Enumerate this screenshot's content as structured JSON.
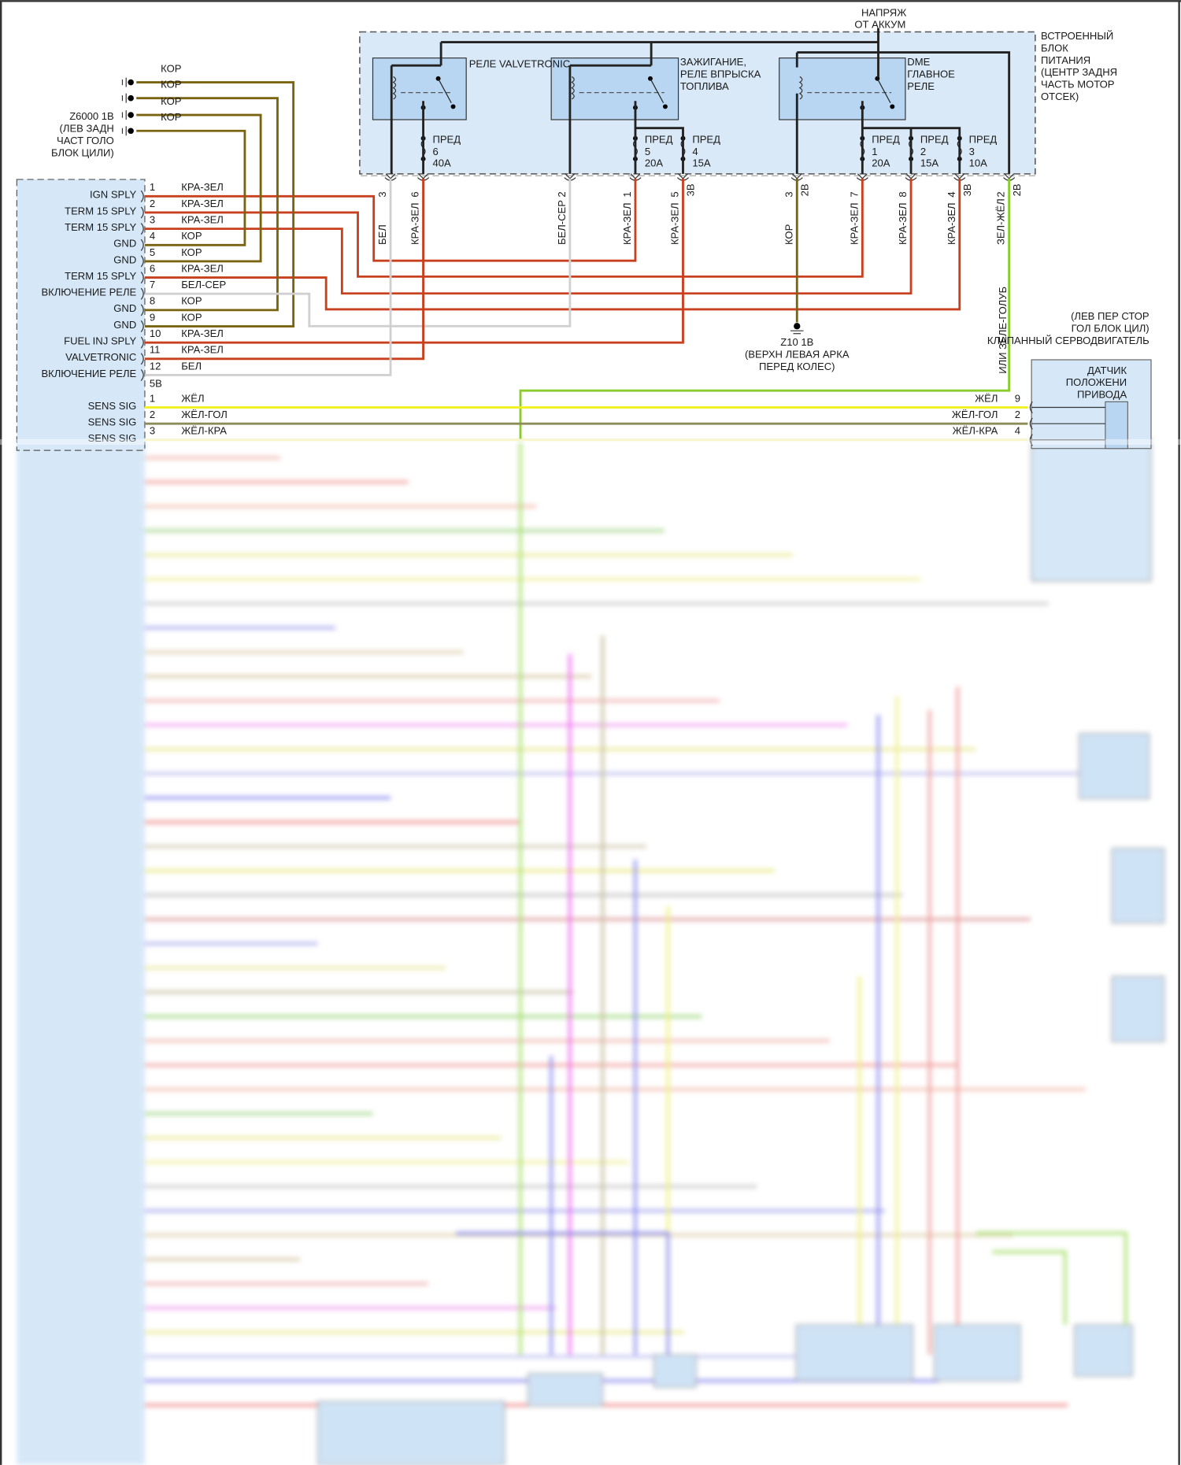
{
  "battery": {
    "line1": "НАПРЯЖ",
    "line2": "ОТ АККУМ"
  },
  "power_block": {
    "lines": [
      "ВСТРОЕННЫЙ",
      "БЛОК",
      "ПИТАНИЯ",
      "(ЦЕНТР ЗАДНЯ",
      "ЧАСТЬ МОТОР",
      "ОТСЕК)"
    ]
  },
  "relays": [
    {
      "lines": [
        "РЕЛЕ VALVETRONIC"
      ]
    },
    {
      "lines": [
        "ЗАЖИГАНИЕ,",
        "РЕЛЕ ВПРЫСКА",
        "ТОПЛИВА"
      ]
    },
    {
      "lines": [
        "DME",
        "ГЛАВНОЕ",
        "РЕЛЕ"
      ]
    }
  ],
  "fuses": [
    {
      "label": "ПРЕД",
      "num": "6",
      "rating": "40A"
    },
    {
      "label": "ПРЕД",
      "num": "5",
      "rating": "20A"
    },
    {
      "label": "ПРЕД",
      "num": "4",
      "rating": "15A"
    },
    {
      "label": "ПРЕД",
      "num": "1",
      "rating": "20A"
    },
    {
      "label": "ПРЕД",
      "num": "2",
      "rating": "15A"
    },
    {
      "label": "ПРЕД",
      "num": "3",
      "rating": "10A"
    }
  ],
  "box_pins": [
    {
      "pin": "3",
      "color": "БЕЛ",
      "conn": ""
    },
    {
      "pin": "6",
      "color": "КРА-ЗЕЛ",
      "conn": ""
    },
    {
      "pin": "2",
      "color": "БЕЛ-СЕР",
      "conn": ""
    },
    {
      "pin": "1",
      "color": "КРА-ЗЕЛ",
      "conn": ""
    },
    {
      "pin": "5",
      "color": "КРА-ЗЕЛ",
      "conn": "3B"
    },
    {
      "pin": "3",
      "color": "КОР",
      "conn": "2B"
    },
    {
      "pin": "7",
      "color": "КРА-ЗЕЛ",
      "conn": ""
    },
    {
      "pin": "8",
      "color": "КРА-ЗЕЛ",
      "conn": ""
    },
    {
      "pin": "4",
      "color": "КРА-ЗЕЛ",
      "conn": "3B"
    },
    {
      "pin": "2",
      "color": "ЗЕЛ-ЖЁЛ",
      "conn": "2B"
    }
  ],
  "alt_wire": "ИЛИ ЗЕЛЕ-ГОЛУБ",
  "ground_z6000": {
    "wires": [
      "КОР",
      "КОР",
      "КОР",
      "КОР"
    ],
    "lines": [
      "Z6000 1B",
      "(ЛЕВ ЗАДН",
      "ЧАСТ ГОЛО",
      "БЛОК ЦИЛИ)"
    ]
  },
  "ground_z10": {
    "lines": [
      "Z10 1B",
      "(ВЕРХН ЛЕВАЯ АРКА",
      "ПЕРЕД КОЛЕС)"
    ]
  },
  "dme_connector": {
    "pins": [
      {
        "num": "1",
        "func": "IGN SPLY",
        "color": "КРА-ЗЕЛ"
      },
      {
        "num": "2",
        "func": "TERM 15 SPLY",
        "color": "КРА-ЗЕЛ"
      },
      {
        "num": "3",
        "func": "TERM 15 SPLY",
        "color": "КРА-ЗЕЛ"
      },
      {
        "num": "4",
        "func": "GND",
        "color": "КОР"
      },
      {
        "num": "5",
        "func": "GND",
        "color": "КОР"
      },
      {
        "num": "6",
        "func": "TERM 15 SPLY",
        "color": "КРА-ЗЕЛ"
      },
      {
        "num": "7",
        "func": "ВКЛЮЧЕНИЕ РЕЛЕ",
        "color": "БЕЛ-СЕР"
      },
      {
        "num": "8",
        "func": "GND",
        "color": "КОР"
      },
      {
        "num": "9",
        "func": "GND",
        "color": "КОР"
      },
      {
        "num": "10",
        "func": "FUEL INJ SPLY",
        "color": "КРА-ЗЕЛ"
      },
      {
        "num": "11",
        "func": "VALVETRONIC",
        "color": "КРА-ЗЕЛ"
      },
      {
        "num": "12",
        "func": "ВКЛЮЧЕНИЕ РЕЛЕ",
        "color": "БЕЛ"
      }
    ],
    "connector2": "5B",
    "sens_pins": [
      {
        "num": "1",
        "func": "SENS SIG",
        "color": "ЖЁЛ",
        "far_color": "ЖЁЛ",
        "far_pin": "9"
      },
      {
        "num": "2",
        "func": "SENS SIG",
        "color": "ЖЁЛ-ГОЛ",
        "far_color": "ЖЁЛ-ГОЛ",
        "far_pin": "2"
      },
      {
        "num": "3",
        "func": "SENS SIG",
        "color": "ЖЁЛ-КРА",
        "far_color": "ЖЁЛ-КРА",
        "far_pin": "4"
      }
    ]
  },
  "servo": {
    "lines": [
      "(ЛЕВ ПЕР СТОР",
      "ГОЛ БЛОК ЦИЛ)",
      "КЛАПАННЫЙ СЕРВОДВИГАТЕЛЬ"
    ]
  },
  "sensor": {
    "lines": [
      "ДАТЧИК",
      "ПОЛОЖЕНИ",
      "ПРИВОДА"
    ]
  },
  "colors": {
    "red_green": "#c8401e",
    "brown": "#7a6410",
    "white": "#d0d0d0",
    "white_grey": "#bdbdbd",
    "green_yellow": "#8acc2c",
    "yellow": "#f2f01e",
    "yellow_blue": "#8c8c58",
    "box_fill": "#d6e8f8",
    "relay_fill": "#b8d6f2"
  }
}
